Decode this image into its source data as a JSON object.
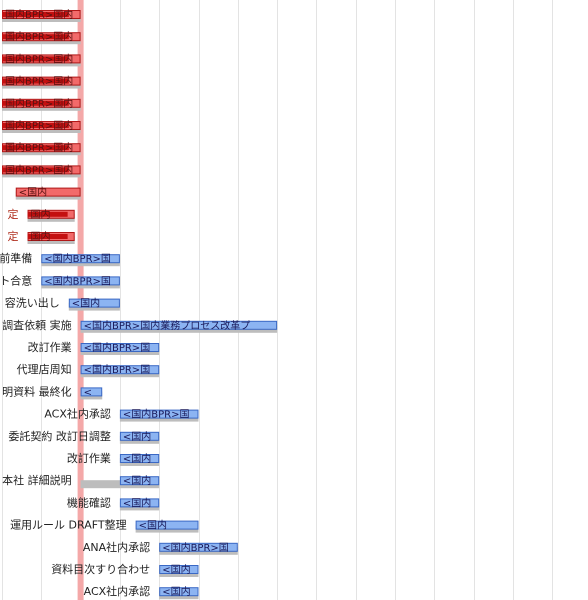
{
  "chart_data": {
    "type": "gantt",
    "x_unit": "week",
    "xlim": [
      0,
      15
    ],
    "today": 2,
    "tasks": [
      {
        "label": "",
        "start": 0.0,
        "end": 2.0,
        "bar_text": "国内BPR>国内",
        "status": "late",
        "progress": 0.85
      },
      {
        "label": "",
        "start": 0.0,
        "end": 2.0,
        "bar_text": "国内BPR>国内",
        "status": "late",
        "progress": 0.85
      },
      {
        "label": "",
        "start": 0.0,
        "end": 2.0,
        "bar_text": "国内BPR>国内",
        "status": "late",
        "progress": 0.85
      },
      {
        "label": "",
        "start": 0.0,
        "end": 2.0,
        "bar_text": "国内BPR>国内",
        "status": "late",
        "progress": 0.85
      },
      {
        "label": "",
        "start": 0.0,
        "end": 2.0,
        "bar_text": "国内BPR>国内",
        "status": "late",
        "progress": 0.85
      },
      {
        "label": "",
        "start": 0.0,
        "end": 2.0,
        "bar_text": "国内BPR>国内",
        "status": "late",
        "progress": 0.85
      },
      {
        "label": "",
        "start": 0.0,
        "end": 2.0,
        "bar_text": "国内BPR>国内",
        "status": "late",
        "progress": 0.85
      },
      {
        "label": "",
        "start": 0.0,
        "end": 2.0,
        "bar_text": "国内BPR>国内",
        "status": "late",
        "progress": 0.85
      },
      {
        "label": "",
        "start": 0.35,
        "end": 2.0,
        "bar_text": "<国内",
        "status": "late",
        "progress": 0.0
      },
      {
        "label": "定",
        "start": 0.65,
        "end": 1.85,
        "bar_text": "国内",
        "status": "late",
        "progress": 0.85
      },
      {
        "label": "定",
        "start": 0.65,
        "end": 1.85,
        "bar_text": "国内",
        "status": "late",
        "progress": 0.85
      },
      {
        "label": "前準備",
        "start": 1.0,
        "end": 3.0,
        "bar_text": "<国内BPR>国",
        "status": "normal",
        "progress": 0.0
      },
      {
        "label": "ト合意",
        "start": 1.0,
        "end": 3.0,
        "bar_text": "<国内BPR>国",
        "status": "normal",
        "progress": 0.0
      },
      {
        "label": "容洗い出し",
        "start": 1.7,
        "end": 3.0,
        "bar_text": "<国内",
        "status": "normal",
        "progress": 0.0
      },
      {
        "label": "調査依頼 実施",
        "start": 2.0,
        "end": 7.0,
        "bar_text": "<国内BPR>国内業務プロセス改革プ",
        "status": "normal",
        "progress": 0.0
      },
      {
        "label": "改訂作業",
        "start": 2.0,
        "end": 4.0,
        "bar_text": "<国内BPR>国",
        "status": "normal",
        "progress": 0.0
      },
      {
        "label": "代理店周知",
        "start": 2.0,
        "end": 4.0,
        "bar_text": "<国内BPR>国",
        "status": "normal",
        "progress": 0.0
      },
      {
        "label": "明資料 最終化",
        "start": 2.0,
        "end": 2.55,
        "bar_text": "<",
        "status": "normal",
        "progress": 0.0
      },
      {
        "label": "ACX社内承認",
        "start": 3.0,
        "end": 5.0,
        "bar_text": "<国内BPR>国",
        "status": "normal",
        "progress": 0.0
      },
      {
        "label": "委託契約 改訂日調整",
        "start": 3.0,
        "end": 4.0,
        "bar_text": "<国内",
        "status": "normal",
        "progress": 0.0
      },
      {
        "label": "改訂作業",
        "start": 3.0,
        "end": 4.0,
        "bar_text": "<国内",
        "status": "normal",
        "progress": 0.0
      },
      {
        "label": "本社 詳細説明",
        "start": 3.0,
        "end": 4.0,
        "bar_text": "<国内",
        "status": "normal",
        "progress": 0.0,
        "shadow_start": 2.0
      },
      {
        "label": "機能確認",
        "start": 3.0,
        "end": 4.0,
        "bar_text": "<国内",
        "status": "normal",
        "progress": 0.0
      },
      {
        "label": "運用ルール DRAFT整理",
        "start": 3.4,
        "end": 5.0,
        "bar_text": "<国内",
        "status": "normal",
        "progress": 0.0
      },
      {
        "label": "ANA社内承認",
        "start": 4.0,
        "end": 6.0,
        "bar_text": "<国内BPR>国",
        "status": "normal",
        "progress": 0.0
      },
      {
        "label": "資料目次すり合わせ",
        "start": 4.0,
        "end": 5.0,
        "bar_text": "<国内",
        "status": "normal",
        "progress": 0.0
      },
      {
        "label": "ACX社内承認",
        "start": 4.0,
        "end": 5.0,
        "bar_text": "<国内",
        "status": "normal",
        "progress": 0.0
      }
    ]
  },
  "colors": {
    "normal_bar": "#8cb4f2",
    "normal_border": "#3a68c4",
    "late_bar": "#f26a6a",
    "late_border": "#b01818",
    "late_progress": "#c41010",
    "shadow": "#bdbdbd",
    "today_line": "#f4a8a8",
    "grid": "#e3e3e3"
  }
}
